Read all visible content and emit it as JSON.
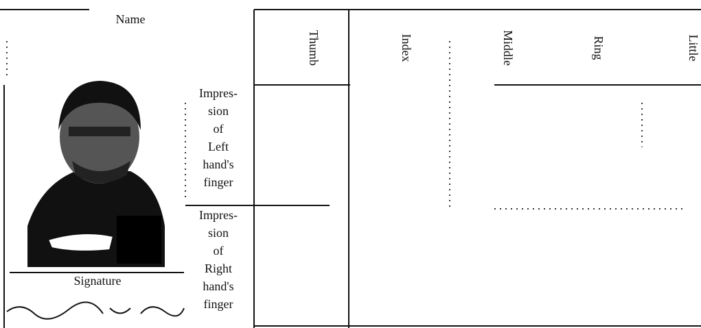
{
  "header": {
    "name_label": "Name"
  },
  "fingers": [
    "Thumb",
    "Index",
    "Middle",
    "Ring",
    "Little"
  ],
  "rows": [
    {
      "label_lines": [
        "Impres-",
        "sion",
        "of",
        "Left",
        "hand's",
        "finger"
      ]
    },
    {
      "label_lines": [
        "Impres-",
        "sion",
        "of",
        "Right",
        "hand's",
        "finger"
      ]
    }
  ],
  "signature_label": "Signature"
}
